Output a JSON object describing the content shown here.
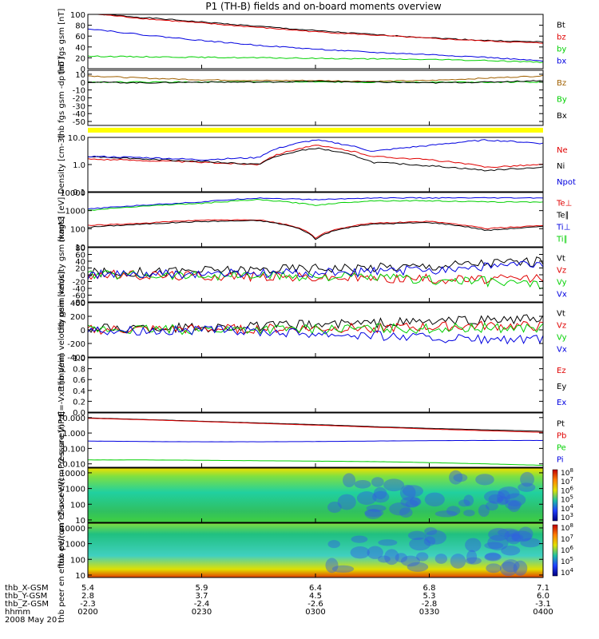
{
  "title": "P1 (TH-B) fields and on-board moments overview",
  "date_label": "2008 May 20",
  "colors": {
    "black": "#000000",
    "red": "#e00000",
    "green": "#00d000",
    "blue": "#0000e0",
    "yellow": "#ffff00",
    "olive": "#a06000"
  },
  "chart_data": [
    {
      "type": "line",
      "panel": "fgs-gsm-magnitude",
      "ylabel": "thb fgs gsm [nT]",
      "ylim": [
        0,
        100
      ],
      "tick_labels": [
        "100",
        "80",
        "60",
        "40",
        "20",
        "0"
      ],
      "legend": [
        "Bt",
        "bz",
        "by",
        "bx"
      ],
      "series": [
        {
          "name": "Bt",
          "color": "#000000",
          "values": [
            102,
            94,
            86,
            78,
            70,
            63,
            57,
            52,
            49
          ]
        },
        {
          "name": "bz",
          "color": "#e00000",
          "values": [
            102,
            92,
            84,
            76,
            68,
            62,
            56,
            51,
            47
          ]
        },
        {
          "name": "by",
          "color": "#00d000",
          "values": [
            23,
            22,
            21,
            20,
            19,
            18,
            17,
            15,
            12
          ]
        },
        {
          "name": "bx",
          "color": "#0000e0",
          "values": [
            74,
            62,
            52,
            43,
            36,
            30,
            26,
            21,
            14
          ]
        }
      ]
    },
    {
      "type": "line",
      "panel": "fgs-gsm-detrended",
      "ylabel": "thb fgs gsm -dp [nT]",
      "ylim": [
        -55,
        15
      ],
      "tick_labels": [
        "10",
        "0",
        "-10",
        "-20",
        "-30",
        "-40",
        "-50"
      ],
      "legend": [
        "Bz",
        "By",
        "Bx"
      ],
      "series": [
        {
          "name": "Bz",
          "color": "#a06000",
          "values": [
            8,
            5,
            3,
            2,
            2,
            1,
            2,
            5,
            8
          ]
        },
        {
          "name": "By",
          "color": "#00d000",
          "values": [
            0,
            0,
            0,
            0,
            0,
            0,
            0,
            0,
            0
          ]
        },
        {
          "name": "Bx",
          "color": "#000000",
          "values": [
            0,
            -1,
            0,
            0,
            1,
            0,
            -1,
            0,
            2
          ]
        }
      ]
    },
    {
      "type": "line",
      "panel": "density",
      "ylabel": "Density [cm-3]",
      "log": true,
      "ylim": [
        0.1,
        10
      ],
      "tick_labels": [
        "10.0",
        "1.0",
        "0.1"
      ],
      "legend": [
        "Ne",
        "Ni",
        "Npot"
      ],
      "series": [
        {
          "name": "Ne",
          "color": "#e00000",
          "values": [
            1.6,
            1.4,
            1.2,
            1.0,
            5.0,
            2.0,
            1.5,
            0.8,
            1.0
          ]
        },
        {
          "name": "Ni",
          "color": "#000000",
          "values": [
            2.0,
            1.6,
            1.3,
            1.0,
            4.0,
            1.2,
            0.9,
            0.6,
            0.8
          ]
        },
        {
          "name": "Npot",
          "color": "#0000e0",
          "values": [
            2.0,
            1.8,
            1.5,
            1.8,
            8.0,
            3.0,
            5.0,
            8.0,
            6.0
          ]
        }
      ]
    },
    {
      "type": "line",
      "panel": "temperature",
      "ylabel": "magt3 [eV]",
      "log": true,
      "ylim": [
        10,
        10000
      ],
      "tick_labels": [
        "10000",
        "1000",
        "100",
        "10"
      ],
      "legend": [
        "Te⊥",
        "Te∥",
        "Ti⊥",
        "Ti∥"
      ],
      "series": [
        {
          "name": "Te⊥",
          "color": "#e00000",
          "values": [
            150,
            200,
            300,
            300,
            30,
            200,
            250,
            100,
            150
          ]
        },
        {
          "name": "Te∥",
          "color": "#000000",
          "values": [
            120,
            180,
            250,
            280,
            25,
            180,
            220,
            80,
            130
          ]
        },
        {
          "name": "Ti⊥",
          "color": "#0000e0",
          "values": [
            1200,
            2000,
            3000,
            5000,
            4000,
            5000,
            5000,
            5000,
            5000
          ]
        },
        {
          "name": "Ti∥",
          "color": "#00d000",
          "values": [
            1000,
            1800,
            2500,
            4000,
            2000,
            3500,
            3500,
            3000,
            3000
          ]
        }
      ]
    },
    {
      "type": "line",
      "panel": "peim-velocity-1",
      "ylabel": "thb peim velocity gsm [km/s]",
      "ylim": [
        -80,
        80
      ],
      "tick_labels": [
        "80",
        "60",
        "40",
        "20",
        "0",
        "-20",
        "-40",
        "-60",
        "-80"
      ],
      "legend": [
        "Vt",
        "Vz",
        "Vy",
        "Vx"
      ],
      "series": [
        {
          "name": "Vt",
          "color": "#000000",
          "values": [
            5,
            8,
            12,
            15,
            20,
            22,
            25,
            35,
            40
          ]
        },
        {
          "name": "Vz",
          "color": "#e00000",
          "values": [
            0,
            -2,
            -3,
            -5,
            -8,
            -10,
            -12,
            -15,
            -10
          ]
        },
        {
          "name": "Vy",
          "color": "#00d000",
          "values": [
            0,
            1,
            -2,
            -3,
            -5,
            -8,
            -15,
            -20,
            -30
          ]
        },
        {
          "name": "Vx",
          "color": "#0000e0",
          "values": [
            0,
            0,
            2,
            3,
            5,
            8,
            15,
            25,
            30
          ]
        }
      ]
    },
    {
      "type": "line",
      "panel": "peim-velocity-2",
      "ylabel": "thb peim velocity gsm [km/s]",
      "ylim": [
        -400,
        400
      ],
      "tick_labels": [
        "400",
        "200",
        "0",
        "-200",
        "-400"
      ],
      "legend": [
        "Vt",
        "Vz",
        "Vy",
        "Vx"
      ],
      "series": [
        {
          "name": "Vt",
          "color": "#000000",
          "values": [
            20,
            30,
            40,
            50,
            80,
            100,
            120,
            150,
            160
          ]
        },
        {
          "name": "Vz",
          "color": "#e00000",
          "values": [
            0,
            5,
            10,
            15,
            20,
            30,
            40,
            60,
            50
          ]
        },
        {
          "name": "Vy",
          "color": "#00d000",
          "values": [
            0,
            5,
            5,
            10,
            10,
            20,
            20,
            30,
            30
          ]
        },
        {
          "name": "Vx",
          "color": "#0000e0",
          "values": [
            0,
            -5,
            -10,
            -20,
            -50,
            -80,
            -120,
            -150,
            -150
          ]
        }
      ]
    },
    {
      "type": "line",
      "panel": "electric-field",
      "ylabel": "E=-VxB [mV/m]",
      "ylim": [
        0,
        1
      ],
      "tick_labels": [
        "1.0",
        "0.8",
        "0.6",
        "0.4",
        "0.2",
        "0.0"
      ],
      "legend": [
        "Ez",
        "Ey",
        "Ex"
      ],
      "series": []
    },
    {
      "type": "line",
      "panel": "pressure",
      "ylabel": "Pressure [nPa]",
      "log": true,
      "ylim": [
        0.006,
        20
      ],
      "tick_labels": [
        "10.000",
        "1.000",
        "0.100",
        "0.010"
      ],
      "legend": [
        "Pt",
        "Pb",
        "Pe",
        "Pi"
      ],
      "series": [
        {
          "name": "Pt",
          "color": "#000000",
          "values": [
            9.5,
            7.5,
            5.8,
            4.5,
            3.5,
            2.6,
            2.0,
            1.6,
            1.3
          ]
        },
        {
          "name": "Pb",
          "color": "#e00000",
          "values": [
            9.0,
            7.2,
            5.5,
            4.2,
            3.2,
            2.4,
            1.8,
            1.4,
            1.1
          ]
        },
        {
          "name": "Pe",
          "color": "#00d000",
          "values": [
            0.018,
            0.018,
            0.017,
            0.016,
            0.015,
            0.014,
            0.012,
            0.01,
            0.008
          ]
        },
        {
          "name": "Pi",
          "color": "#0000e0",
          "values": [
            0.3,
            0.28,
            0.27,
            0.27,
            0.28,
            0.3,
            0.32,
            0.33,
            0.33
          ]
        }
      ]
    },
    {
      "type": "heatmap",
      "panel": "peir-energy-flux",
      "ylabel": "thb peir en eflux eV/(cm^2-s-sr-eV)",
      "log": true,
      "ylim": [
        7,
        20000
      ],
      "tick_labels": [
        "10000",
        "1000",
        "100",
        "10"
      ],
      "colorbar_labels": [
        "10^8",
        "10^7",
        "10^6",
        "10^5",
        "10^4",
        "10^3"
      ]
    },
    {
      "type": "heatmap",
      "panel": "peer-energy-flux",
      "ylabel": "thb peer en eflux eV/(cm^2-s-sr-eV)",
      "log": true,
      "ylim": [
        7,
        20000
      ],
      "tick_labels": [
        "10000",
        "1000",
        "100",
        "10"
      ],
      "colorbar_labels": [
        "10^8",
        "10^7",
        "10^6",
        "10^5",
        "10^4"
      ]
    }
  ],
  "x_axis": {
    "row_labels": [
      "thb_X-GSM",
      "thb_Y-GSM",
      "thb_Z-GSM",
      "hhmm"
    ],
    "ticks": [
      {
        "x": "5.4",
        "y": "2.8",
        "z": "-2.3",
        "t": "0200"
      },
      {
        "x": "5.9",
        "y": "3.7",
        "z": "-2.4",
        "t": "0230"
      },
      {
        "x": "6.4",
        "y": "4.5",
        "z": "-2.6",
        "t": "0300"
      },
      {
        "x": "6.8",
        "y": "5.3",
        "z": "-2.8",
        "t": "0330"
      },
      {
        "x": "7.1",
        "y": "6.0",
        "z": "-3.1",
        "t": "0400"
      }
    ]
  }
}
